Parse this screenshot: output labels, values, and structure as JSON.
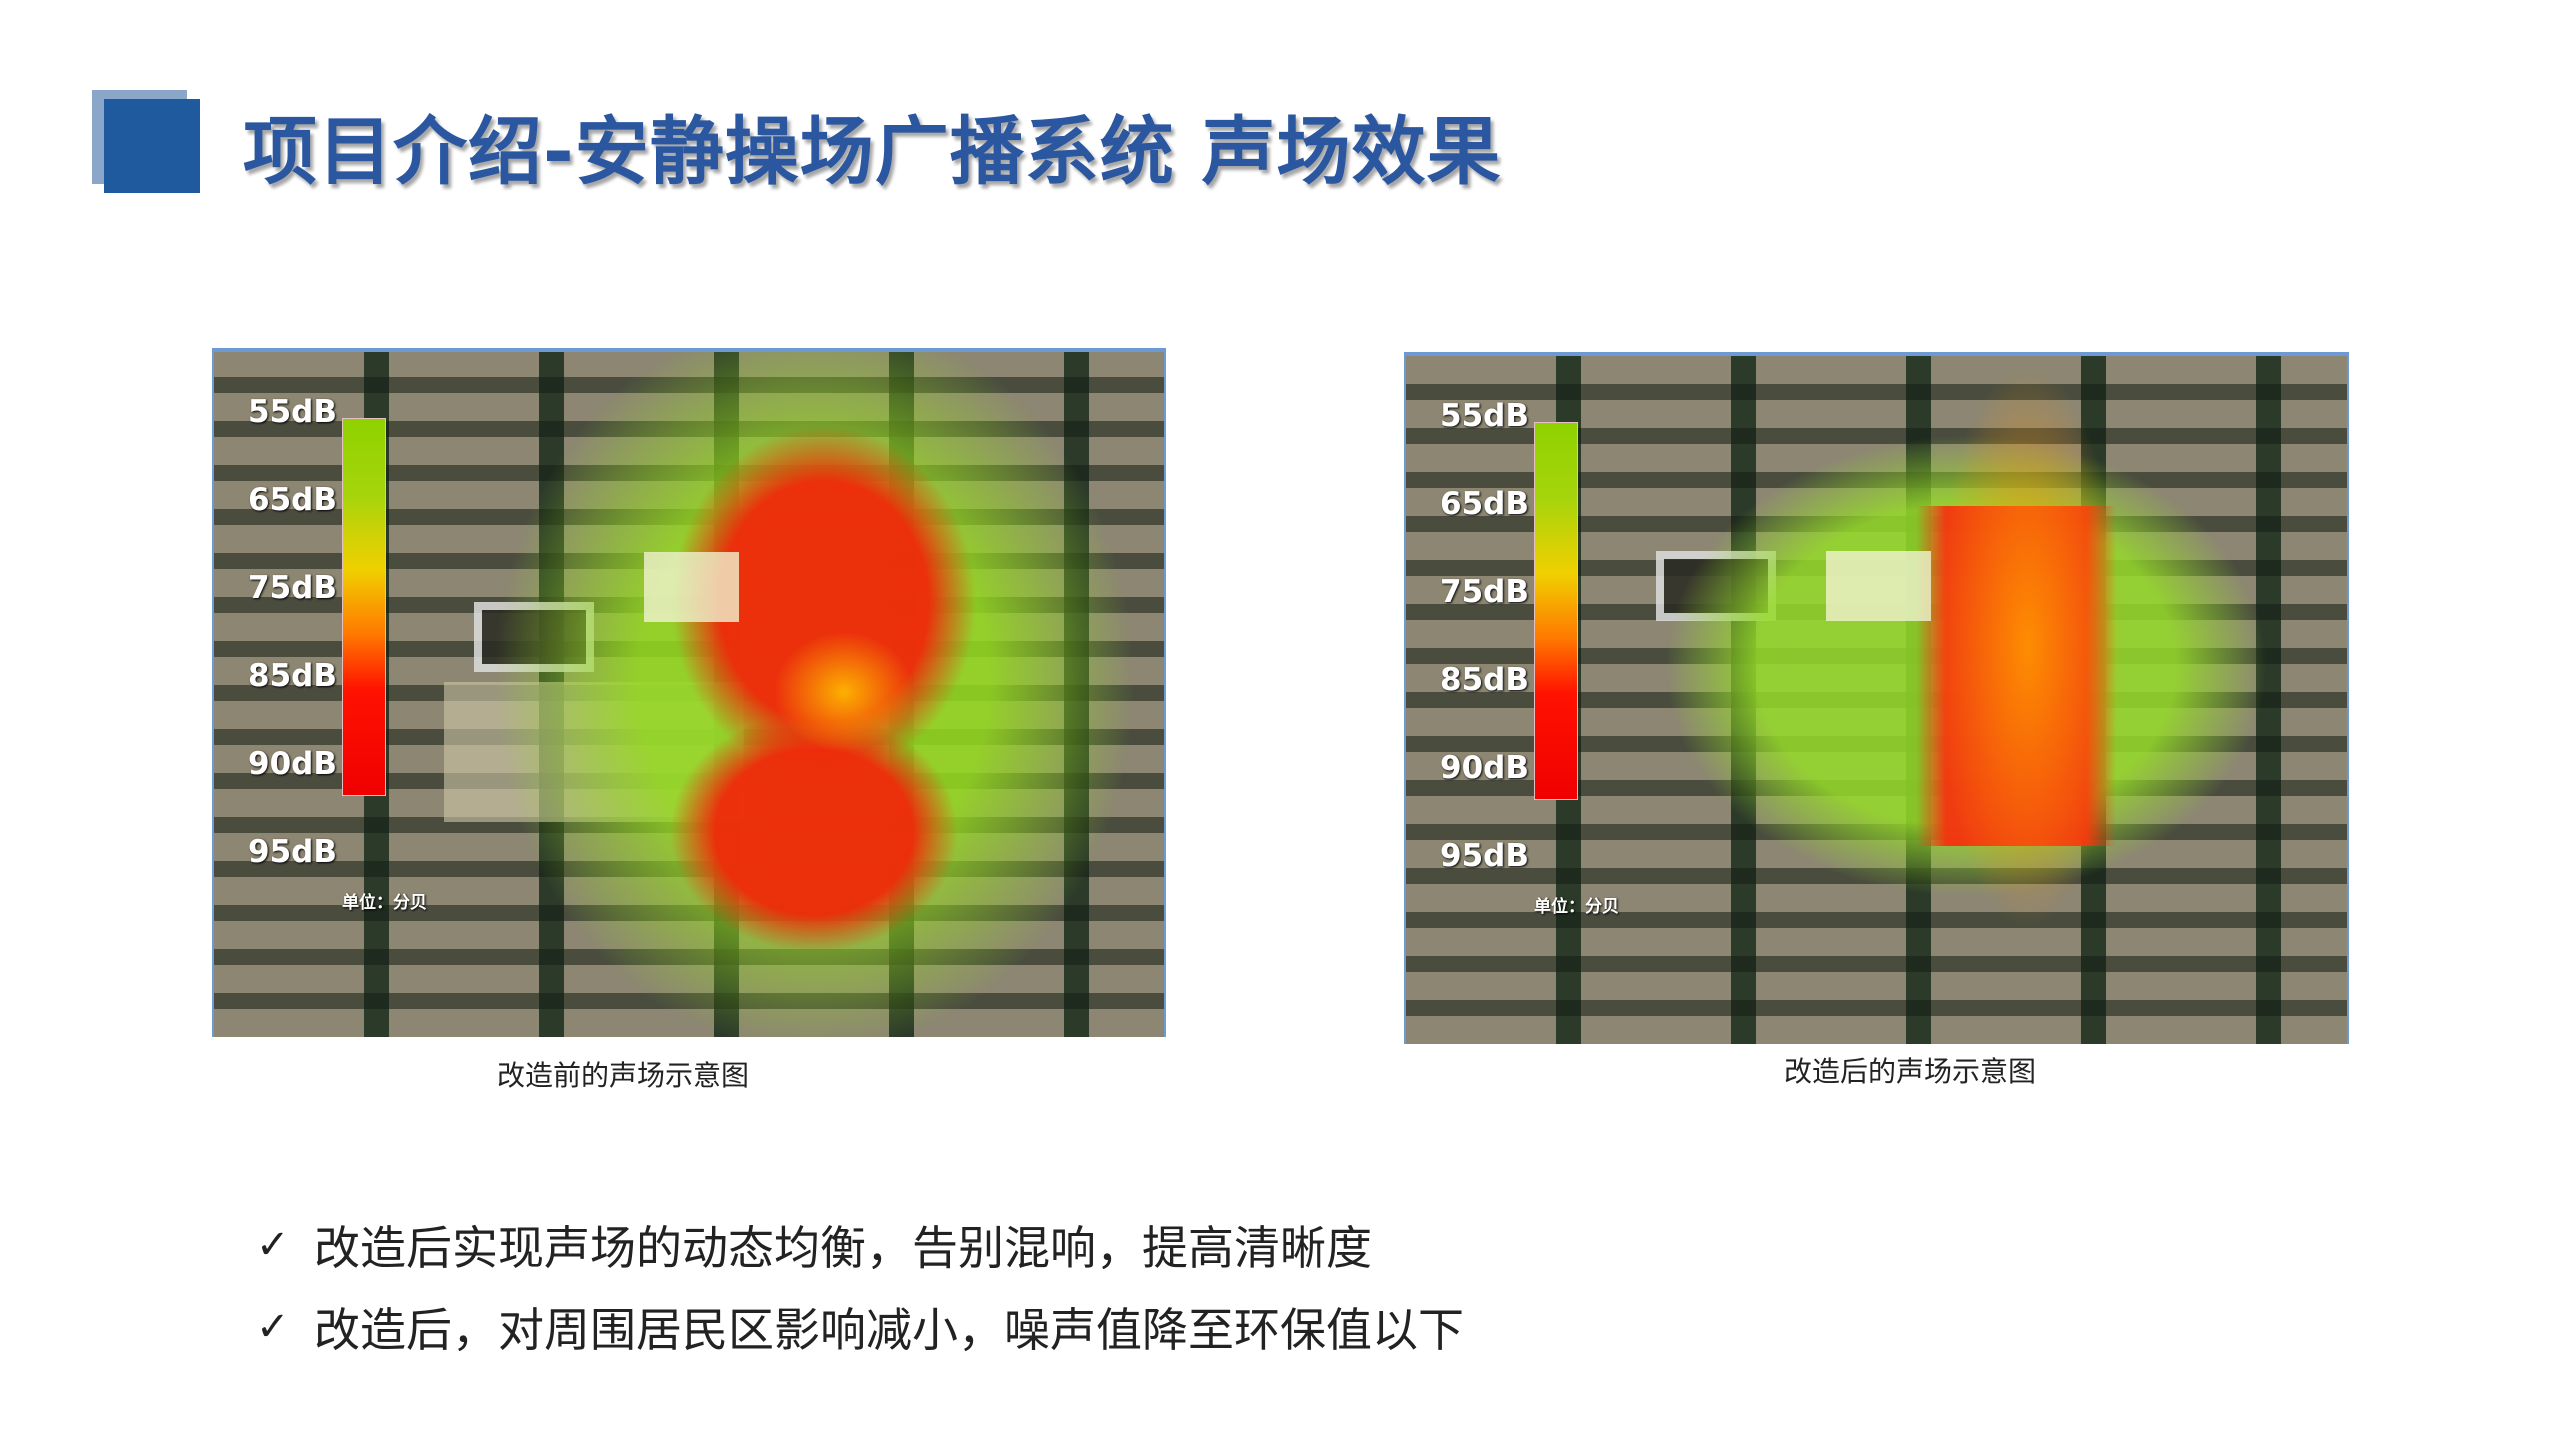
{
  "title": "项目介绍-安静操场广播系统 声场效果",
  "colors": {
    "accent": "#1f5a9e",
    "title": "#2b57a0"
  },
  "maps": [
    {
      "caption": "改造前的声场示意图",
      "scale_labels": [
        "55dB",
        "65dB",
        "75dB",
        "85dB",
        "90dB",
        "95dB"
      ],
      "unit": "单位：分贝"
    },
    {
      "caption": "改造后的声场示意图",
      "scale_labels": [
        "55dB",
        "65dB",
        "75dB",
        "85dB",
        "90dB",
        "95dB"
      ],
      "unit": "单位：分贝"
    }
  ],
  "bullets": [
    {
      "icon": "check-icon",
      "text": "改造后实现声场的动态均衡，告别混响，提高清晰度"
    },
    {
      "icon": "check-icon",
      "text": "改造后，对周围居民区影响减小，噪声值降至环保值以下"
    }
  ]
}
